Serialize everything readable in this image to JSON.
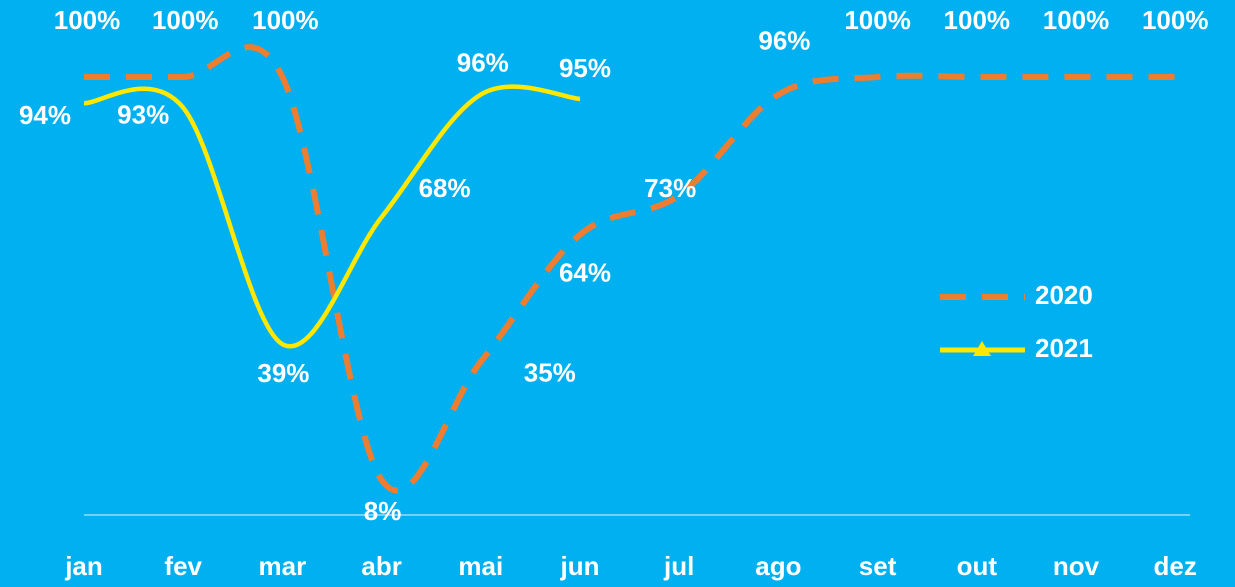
{
  "chart_data": {
    "type": "line",
    "categories": [
      "jan",
      "fev",
      "mar",
      "abr",
      "mai",
      "jun",
      "jul",
      "ago",
      "set",
      "out",
      "nov",
      "dez"
    ],
    "ylim": [
      0,
      100
    ],
    "legend": "right",
    "series": [
      {
        "name": "2020",
        "color": "#ED7D31",
        "dashed": true,
        "values": [
          100,
          100,
          100,
          8,
          35,
          64,
          73,
          96,
          100,
          100,
          100,
          100
        ],
        "value_labels": [
          "100%",
          "100%",
          "100%",
          "8%",
          "35%",
          "64%",
          "73%",
          "96%",
          "100%",
          "100%",
          "100%",
          "100%"
        ]
      },
      {
        "name": "2021",
        "color": "#FFE800",
        "dashed": false,
        "values": [
          94,
          93,
          39,
          68,
          96,
          95,
          null,
          null,
          null,
          null,
          null,
          null
        ],
        "value_labels": [
          "94%",
          "93%",
          "39%",
          "68%",
          "96%",
          "95%",
          null,
          null,
          null,
          null,
          null,
          null
        ]
      }
    ]
  }
}
